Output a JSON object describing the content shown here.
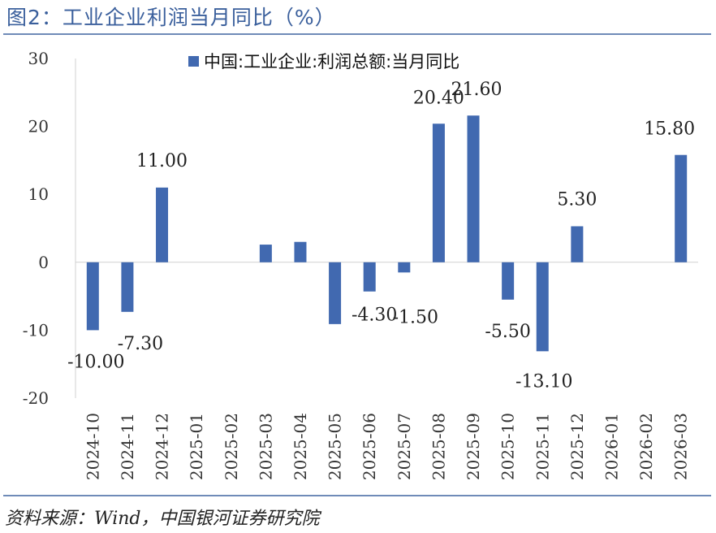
{
  "header": {
    "title": "图2：工业企业利润当月同比（%）"
  },
  "footer": {
    "source": "资料来源：Wind，中国银河证券研究院"
  },
  "colors": {
    "bar": "#4169b0",
    "title": "#3a5f9c",
    "rule": "#6f8bb8"
  },
  "chart_data": {
    "type": "bar",
    "title": "图2：工业企业利润当月同比（%）",
    "legend": {
      "label": "中国:工业企业:利润总额:当月同比",
      "position": "top-center"
    },
    "categories": [
      "2024-10",
      "2024-11",
      "2024-12",
      "2025-01",
      "2025-02",
      "2025-03",
      "2025-04",
      "2025-05",
      "2025-06",
      "2025-07",
      "2025-08",
      "2025-09",
      "2025-10",
      "2025-11",
      "2025-12",
      "2026-01",
      "2026-02",
      "2026-03"
    ],
    "series": [
      {
        "name": "中国:工业企业:利润总额:当月同比",
        "values": [
          -10.0,
          -7.3,
          11.0,
          null,
          null,
          2.6,
          3.0,
          -9.1,
          -4.3,
          -1.5,
          20.4,
          21.6,
          -5.5,
          -13.1,
          5.3,
          null,
          null,
          15.8
        ],
        "data_labels": [
          "-10.00",
          "-7.30",
          "11.00",
          "",
          "",
          "",
          "",
          "",
          "-4.30",
          "-1.50",
          "20.40",
          "21.60",
          "-5.50",
          "-13.10",
          "5.30",
          "",
          "",
          "15.80"
        ]
      }
    ],
    "yticks": [
      "30",
      "20",
      "10",
      "0",
      "-10",
      "-20"
    ],
    "ylim": [
      -20,
      30
    ],
    "xlabel": "",
    "ylabel": "",
    "grid": false
  }
}
